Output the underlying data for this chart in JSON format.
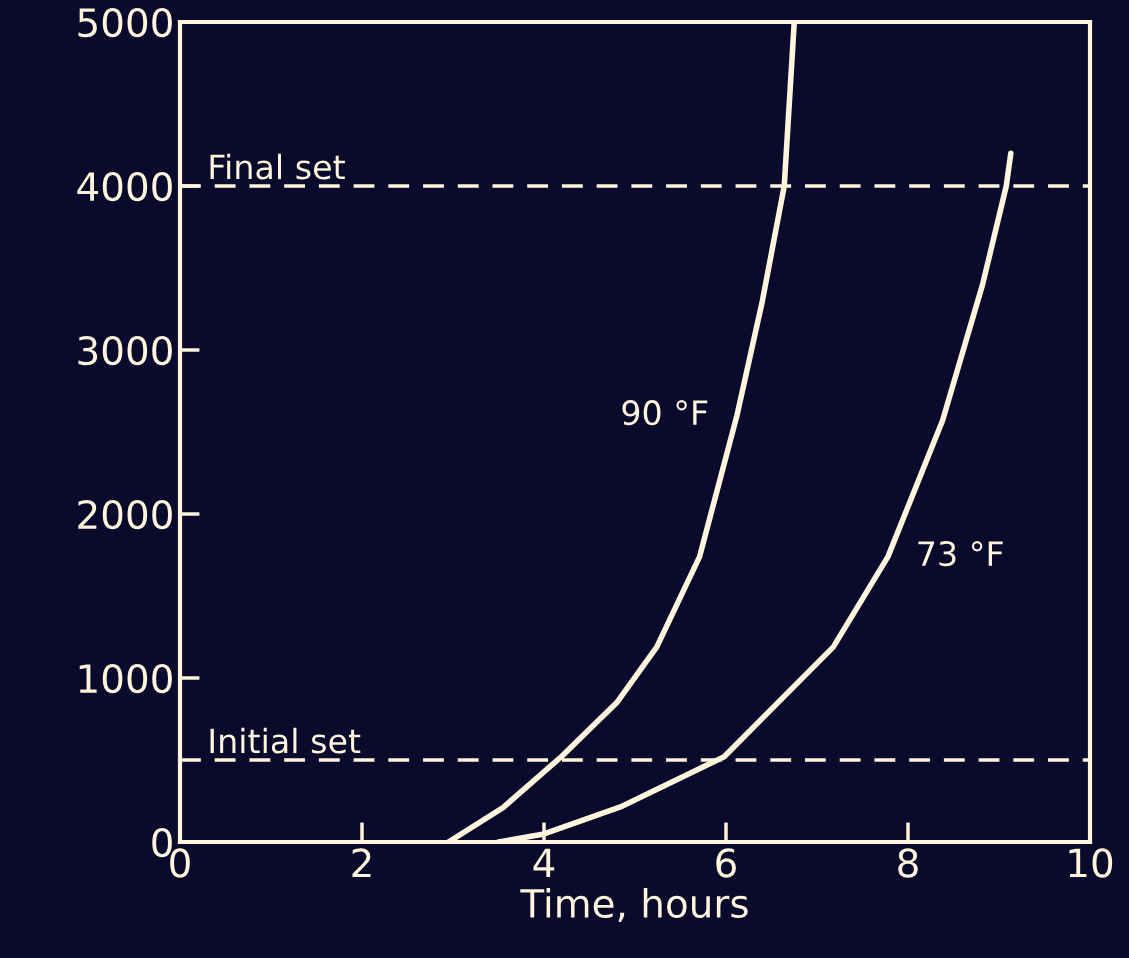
{
  "chart_data": {
    "type": "line",
    "xlabel": "Time, hours",
    "xlim": [
      0,
      10
    ],
    "xticks": [
      0,
      2,
      4,
      6,
      8,
      10
    ],
    "ylim": [
      0,
      5000
    ],
    "yticks": [
      0,
      1000,
      2000,
      3000,
      4000,
      5000
    ],
    "grid": false,
    "legend": false,
    "marker": "none",
    "line_style": "solid",
    "series": [
      {
        "name": "90 °F",
        "color": "#fff4dc",
        "x": [
          2.95,
          3.55,
          4.19,
          4.8,
          5.24,
          5.71,
          6.12,
          6.4,
          6.64,
          6.75
        ],
        "values": [
          0,
          210,
          520,
          850,
          1190,
          1740,
          2600,
          3300,
          4000,
          5000
        ]
      },
      {
        "name": "73 °F",
        "color": "#fff4dc",
        "x": [
          3.5,
          4.0,
          4.84,
          5.98,
          7.18,
          7.78,
          8.38,
          8.82,
          9.08,
          9.13
        ],
        "values": [
          0,
          49,
          214,
          520,
          1190,
          1740,
          2570,
          3400,
          4000,
          4200
        ]
      }
    ],
    "ref_lines": [
      {
        "axis": "y",
        "value": 500,
        "label": "Initial set",
        "color": "#fff4dc",
        "line_style": "dashed"
      },
      {
        "axis": "y",
        "value": 4000,
        "label": "Final set",
        "color": "#fff4dc",
        "line_style": "dashed"
      }
    ]
  }
}
